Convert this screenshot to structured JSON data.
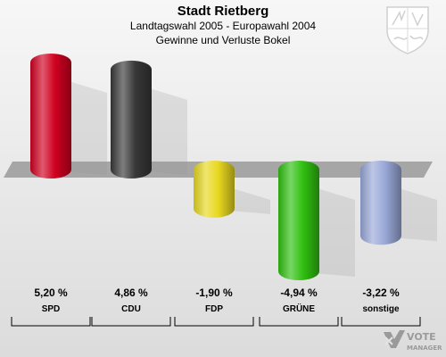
{
  "header": {
    "title": "Stadt Rietberg",
    "subtitle1": "Landtagswahl 2005 - Europawahl 2004",
    "subtitle2": "Gewinne und Verluste Bokel"
  },
  "chart_data": {
    "type": "bar",
    "categories": [
      "SPD",
      "CDU",
      "FDP",
      "GRÜNE",
      "sonstige"
    ],
    "values": [
      5.2,
      4.86,
      -1.9,
      -4.94,
      -3.22
    ],
    "value_labels": [
      "5,20 %",
      "4,86 %",
      "-1,90 %",
      "-4,94 %",
      "-3,22 %"
    ],
    "colors": [
      "#d00020",
      "#383838",
      "#e8d820",
      "#30c010",
      "#99a8d8"
    ],
    "title": "Stadt Rietberg",
    "subtitle": "Landtagswahl 2005 - Europawahl 2004 / Gewinne und Verluste Bokel",
    "grid": false,
    "legend": "none"
  },
  "logo": {
    "line1": "VOTE",
    "line2": "MANAGER"
  }
}
